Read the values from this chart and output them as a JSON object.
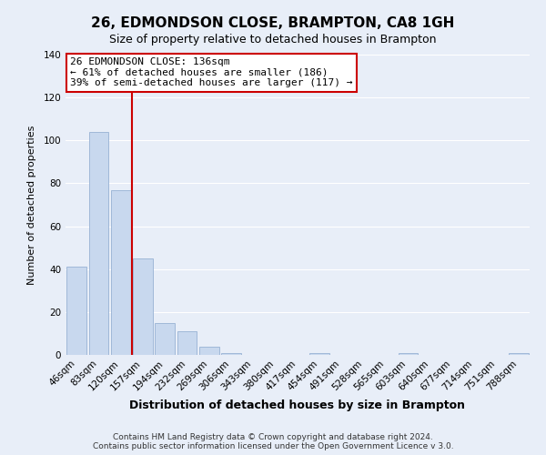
{
  "title": "26, EDMONDSON CLOSE, BRAMPTON, CA8 1GH",
  "subtitle": "Size of property relative to detached houses in Brampton",
  "xlabel": "Distribution of detached houses by size in Brampton",
  "ylabel": "Number of detached properties",
  "bar_labels": [
    "46sqm",
    "83sqm",
    "120sqm",
    "157sqm",
    "194sqm",
    "232sqm",
    "269sqm",
    "306sqm",
    "343sqm",
    "380sqm",
    "417sqm",
    "454sqm",
    "491sqm",
    "528sqm",
    "565sqm",
    "603sqm",
    "640sqm",
    "677sqm",
    "714sqm",
    "751sqm",
    "788sqm"
  ],
  "bar_values": [
    41,
    104,
    77,
    45,
    15,
    11,
    4,
    1,
    0,
    0,
    0,
    1,
    0,
    0,
    0,
    1,
    0,
    0,
    0,
    0,
    1
  ],
  "bar_color": "#c8d8ee",
  "bar_edge_color": "#a0b8d8",
  "vline_color": "#cc0000",
  "vline_x": 2.5,
  "ylim": [
    0,
    140
  ],
  "yticks": [
    0,
    20,
    40,
    60,
    80,
    100,
    120,
    140
  ],
  "annotation_title": "26 EDMONDSON CLOSE: 136sqm",
  "annotation_line1": "← 61% of detached houses are smaller (186)",
  "annotation_line2": "39% of semi-detached houses are larger (117) →",
  "annotation_box_color": "#ffffff",
  "annotation_box_edge": "#cc0000",
  "footer_line1": "Contains HM Land Registry data © Crown copyright and database right 2024.",
  "footer_line2": "Contains public sector information licensed under the Open Government Licence v 3.0.",
  "background_color": "#e8eef8",
  "grid_color": "#ffffff",
  "title_fontsize": 11,
  "subtitle_fontsize": 9,
  "ylabel_fontsize": 8,
  "xlabel_fontsize": 9,
  "tick_fontsize": 7.5,
  "annotation_fontsize": 8,
  "footer_fontsize": 6.5
}
